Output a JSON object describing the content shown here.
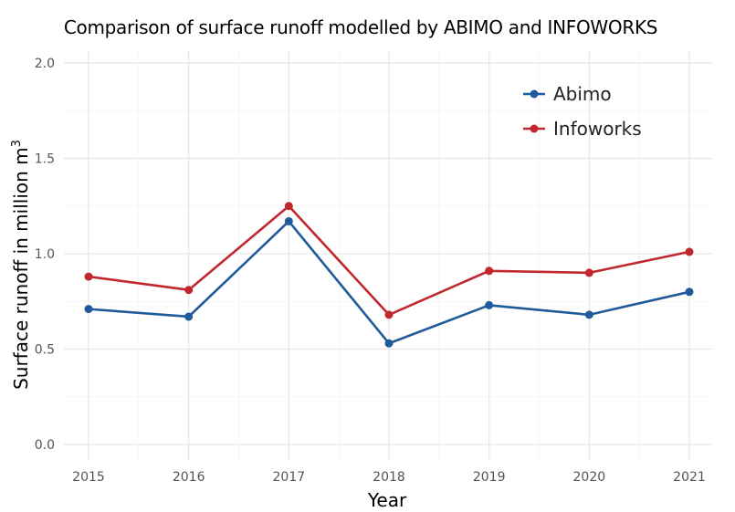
{
  "chart_data": {
    "type": "line",
    "title": "Comparison of surface runoff modelled by ABIMO and INFOWORKS",
    "xlabel": "Year",
    "ylabel": "Surface runoff in million m",
    "ylabel_superscript": "3",
    "x": [
      2015,
      2016,
      2017,
      2018,
      2019,
      2020,
      2021
    ],
    "x_ticks": [
      "2015",
      "2016",
      "2017",
      "2018",
      "2019",
      "2020",
      "2021"
    ],
    "y_ticks": [
      "0.0",
      "0.5",
      "1.0",
      "1.5",
      "2.0"
    ],
    "ylim": [
      0,
      2.0
    ],
    "grid": true,
    "legend_position": "top-right",
    "series": [
      {
        "name": "Abimo",
        "color": "#1f5b9a",
        "values": [
          0.71,
          0.67,
          1.17,
          0.53,
          0.73,
          0.68,
          0.8
        ]
      },
      {
        "name": "Infoworks",
        "color": "#c0282d",
        "values": [
          0.88,
          0.81,
          1.25,
          0.68,
          0.91,
          0.9,
          1.01
        ]
      }
    ]
  }
}
